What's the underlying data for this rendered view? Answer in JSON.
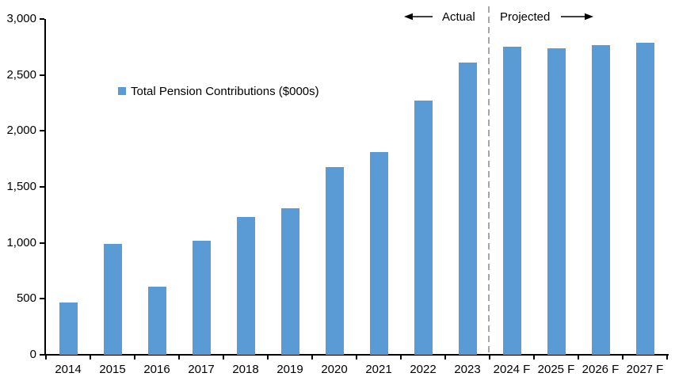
{
  "chart_data": {
    "type": "bar",
    "title": "",
    "legend": "Total Pension Contributions ($000s)",
    "categories": [
      "2014",
      "2015",
      "2016",
      "2017",
      "2018",
      "2019",
      "2020",
      "2021",
      "2022",
      "2023",
      "2024 F",
      "2025 F",
      "2026 F",
      "2027 F"
    ],
    "values": [
      470,
      990,
      610,
      1020,
      1230,
      1310,
      1680,
      1810,
      2270,
      2610,
      2750,
      2740,
      2770,
      2790
    ],
    "xlabel": "",
    "ylabel": "",
    "ylim": [
      0,
      3000
    ],
    "ytick_interval": 500,
    "ytick_labels": [
      "0",
      "500",
      "1,000",
      "1,500",
      "2,000",
      "2,500",
      "3,000"
    ],
    "grid": false,
    "legend_position": "inside-upper-left",
    "bar_color": "#5B9BD5",
    "axis_color": "#000000",
    "divider": {
      "after_category": "2023",
      "style": "dashed",
      "color": "#A6A6A6"
    },
    "annotations": {
      "actual": "Actual",
      "projected": "Projected"
    }
  }
}
